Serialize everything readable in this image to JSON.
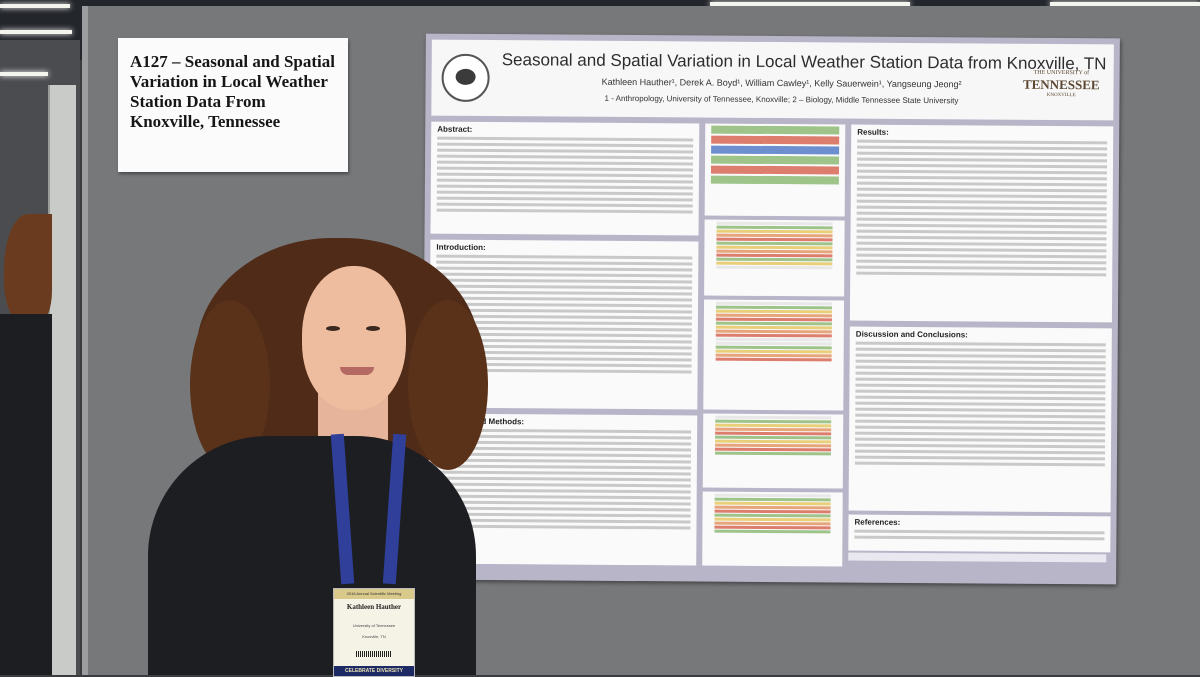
{
  "sign": {
    "title": "A127 – Seasonal and Spatial Variation in Local Weather Station Data From Knoxville, Tennessee"
  },
  "poster": {
    "title": "Seasonal and Spatial Variation in Local Weather Station Data from Knoxville, TN",
    "authors": "Kathleen Hauther¹, Derek A. Boyd¹, William Cawley¹, Kelly Sauerwein¹, Yangseung Jeong²",
    "affiliations": "1 - Anthropology, University of Tennessee, Knoxville; 2 – Biology, Middle Tennessee State University",
    "logo_right_top": "THE UNIVERSITY of",
    "logo_right_main": "TENNESSEE",
    "logo_right_bottom": "KNOXVILLE",
    "sections": {
      "abstract": "Abstract:",
      "introduction": "Introduction:",
      "materials": "Materials and Methods:",
      "results": "Results:",
      "discussion": "Discussion and Conclusions:",
      "references": "References:"
    }
  },
  "badge": {
    "header": "2016 Annual Scientific Meeting",
    "name": "Kathleen Hauther",
    "institution": "University of Tennessee",
    "city": "Knoxville, TN",
    "footer": "CELEBRATE DIVERSITY"
  },
  "colors": {
    "poster_frame": "#b9b5c9",
    "hair": "#4f2b18",
    "lanyard": "#2f3f9a"
  }
}
